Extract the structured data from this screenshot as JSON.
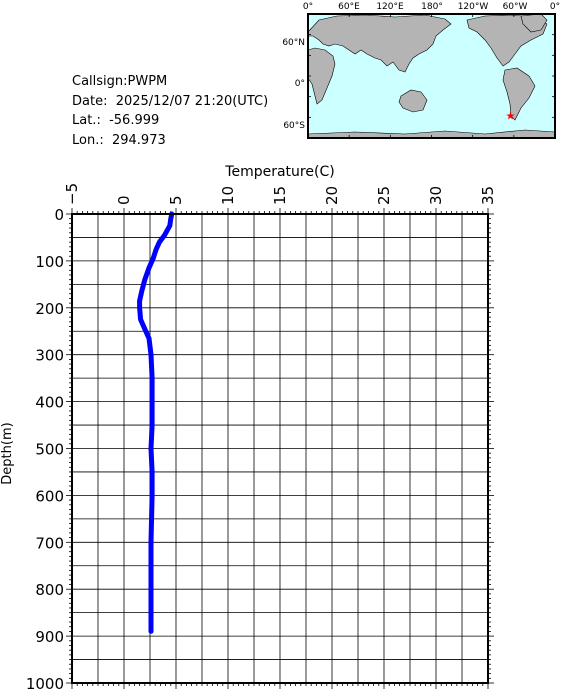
{
  "station": {
    "callsign_text": "Callsign:PWPM",
    "date_text": "Date:  2025/12/07 21:20(UTC)",
    "lat_text": "Lat.:  -56.999",
    "lon_text": "Lon.:  294.973"
  },
  "map": {
    "top_labels": [
      "0°",
      "60°E",
      "120°E",
      "180°",
      "120°W",
      "60°W",
      "0°"
    ],
    "lat_labels": [
      "60°N",
      "0°",
      "60°S"
    ],
    "ocean_color": "#ccffff",
    "land_color": "#b4b4b4",
    "marker_color": "#ff0000",
    "marker": {
      "lat": -56.999,
      "lon": 294.973
    }
  },
  "chart_data": {
    "type": "line",
    "xlabel": "Temperature(C)",
    "ylabel": "Depth(m)",
    "xlim": [
      -5,
      35
    ],
    "ylim": [
      0,
      1000
    ],
    "y_inverted": true,
    "x_ticks": [
      -5,
      0,
      5,
      10,
      15,
      20,
      25,
      30,
      35
    ],
    "y_ticks": [
      0,
      100,
      200,
      300,
      400,
      500,
      600,
      700,
      800,
      900,
      1000
    ],
    "grid": true,
    "series_color": "#0000ff",
    "series": [
      {
        "x": [
          4.6,
          4.5,
          4.4,
          3.9,
          3.4,
          3.1,
          2.8,
          2.4,
          2.0,
          1.7,
          1.5,
          1.5,
          1.6,
          2.1,
          2.4,
          2.6,
          2.7,
          2.7,
          2.7,
          2.6,
          2.7,
          2.7,
          2.6,
          2.6,
          2.6
        ],
        "y": [
          0,
          10,
          25,
          45,
          60,
          75,
          95,
          115,
          140,
          165,
          185,
          200,
          225,
          250,
          265,
          300,
          350,
          400,
          450,
          500,
          550,
          600,
          700,
          800,
          890
        ]
      }
    ]
  }
}
